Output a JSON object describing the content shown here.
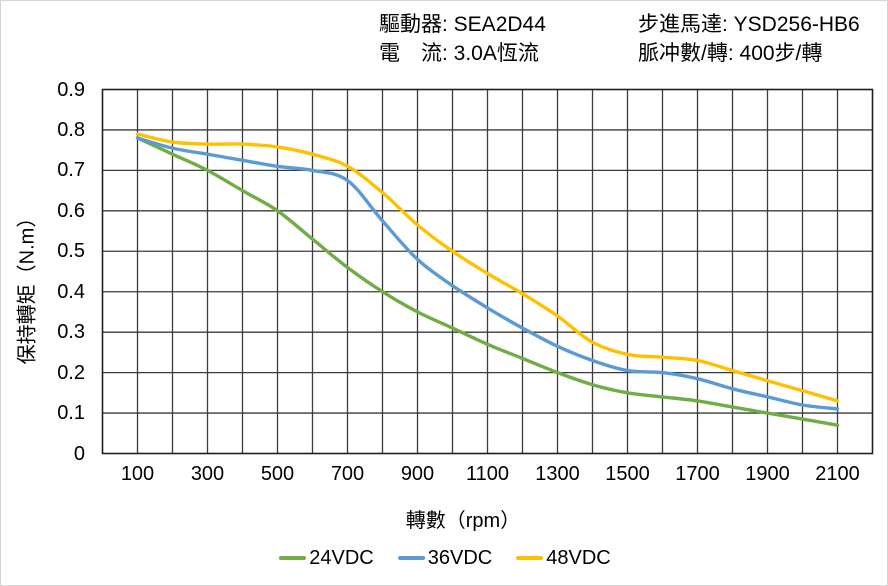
{
  "header": {
    "left": [
      {
        "label": "驅動器: ",
        "value": "SEA2D44"
      },
      {
        "label": "電　流: ",
        "value": "3.0A恆流"
      }
    ],
    "right": [
      {
        "label": "步進馬達: ",
        "value": "YSD256-HB6"
      },
      {
        "label": "脈冲數/轉: ",
        "value": "400步/轉"
      }
    ]
  },
  "colors": {
    "grid": "#3b3b3b",
    "plot_border": "#1f1f1f",
    "background": "#ffffff",
    "text": "#000000",
    "frame": "#d6d6d6"
  },
  "chart_data": {
    "type": "line",
    "title": "",
    "xlabel": "轉數（rpm）",
    "ylabel": "保持轉矩（N.m）",
    "xlim": [
      0,
      2200
    ],
    "ylim": [
      0,
      0.9
    ],
    "x_grid_step": 100,
    "y_grid_step": 0.1,
    "grid": true,
    "legend_position": "bottom",
    "x": [
      100,
      200,
      300,
      400,
      500,
      600,
      700,
      800,
      900,
      1000,
      1100,
      1200,
      1300,
      1400,
      1500,
      1600,
      1700,
      1800,
      1900,
      2000,
      2100
    ],
    "series": [
      {
        "name": "24VDC",
        "color": "#70AD47",
        "values": [
          0.78,
          0.74,
          0.7,
          0.65,
          0.6,
          0.53,
          0.46,
          0.4,
          0.35,
          0.31,
          0.27,
          0.235,
          0.2,
          0.17,
          0.15,
          0.14,
          0.13,
          0.115,
          0.1,
          0.085,
          0.07
        ]
      },
      {
        "name": "36VDC",
        "color": "#5B9BD5",
        "values": [
          0.78,
          0.755,
          0.74,
          0.725,
          0.71,
          0.7,
          0.675,
          0.575,
          0.48,
          0.415,
          0.36,
          0.31,
          0.265,
          0.23,
          0.205,
          0.2,
          0.185,
          0.16,
          0.14,
          0.12,
          0.11
        ]
      },
      {
        "name": "48VDC",
        "color": "#FFC000",
        "values": [
          0.79,
          0.77,
          0.765,
          0.765,
          0.758,
          0.74,
          0.71,
          0.645,
          0.565,
          0.5,
          0.445,
          0.395,
          0.34,
          0.275,
          0.245,
          0.238,
          0.23,
          0.205,
          0.18,
          0.155,
          0.13
        ]
      }
    ],
    "x_tick_values": [
      100,
      300,
      500,
      700,
      900,
      1100,
      1300,
      1500,
      1700,
      1900,
      2100
    ],
    "x_tick_labels": [
      "100",
      "300",
      "500",
      "700",
      "900",
      "1100",
      "1300",
      "1500",
      "1700",
      "1900",
      "2100"
    ],
    "y_tick_values": [
      0.9,
      0.8,
      0.7,
      0.6,
      0.5,
      0.4,
      0.3,
      0.2,
      0.1,
      0
    ],
    "y_tick_labels": [
      "0.9",
      "0.8",
      "0.7",
      "0.6",
      "0.5",
      "0.4",
      "0.3",
      "0.2",
      "0.1",
      "0"
    ]
  }
}
